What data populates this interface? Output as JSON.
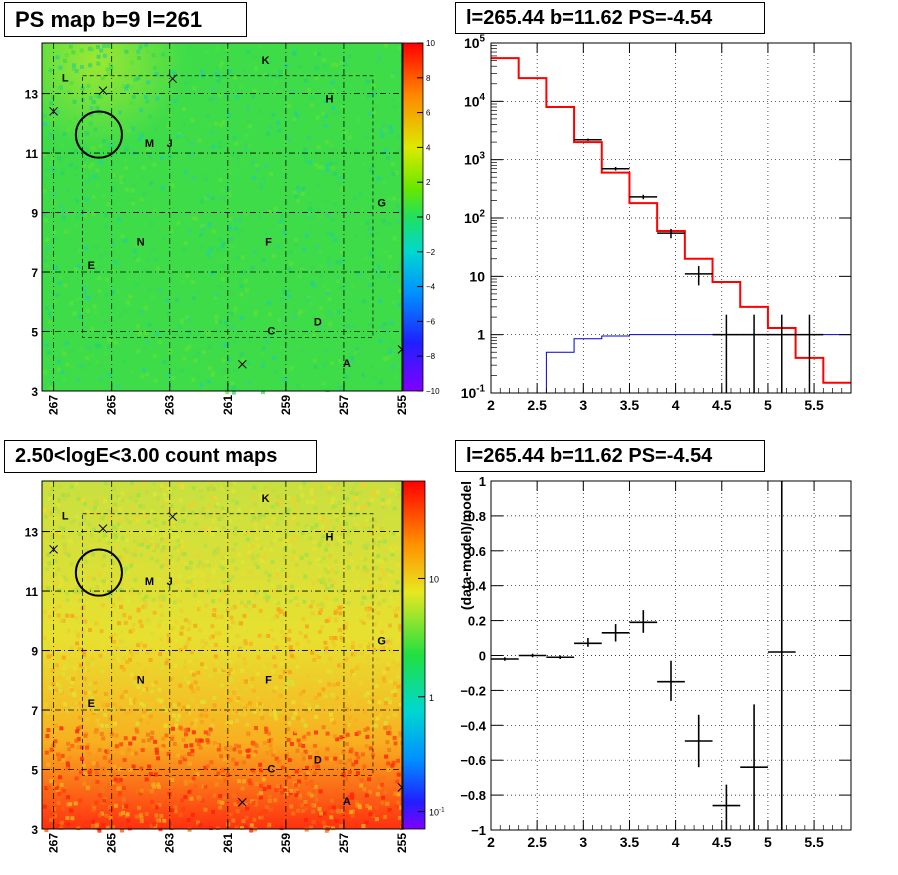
{
  "panels": {
    "top_left_title": "PS map b=9 l=261",
    "top_right_title": "l=265.44 b=11.62 PS=-4.54",
    "bottom_left_title": "2.50<logE<3.00 count maps",
    "bottom_right_title": "l=265.44 b=11.62 PS=-4.54"
  },
  "colors": {
    "frame": "#000000",
    "model_line": "#ff0000",
    "exposure_line": "#0000cc",
    "data": "#000000",
    "map_base_ps": "#3fdc4a",
    "map_base_counts": "#d8e040"
  },
  "chart_data": [
    {
      "type": "heatmap",
      "title": "PS map b=9 l=261",
      "x_ticks": [
        "267",
        "265",
        "263",
        "261",
        "259",
        "257",
        "255"
      ],
      "y_ticks": [
        "3",
        "5",
        "7",
        "9",
        "11",
        "13"
      ],
      "xlim": [
        267.4,
        255
      ],
      "ylim": [
        3,
        14.7
      ],
      "colorbar": {
        "min": -10,
        "max": 10,
        "ticks": [
          "10",
          "8",
          "6",
          "4",
          "2",
          "0",
          "−2",
          "−4",
          "−6",
          "−8",
          "−10"
        ]
      },
      "source_labels": [
        {
          "text": "K",
          "l": 259.7,
          "b": 14.0
        },
        {
          "text": "L",
          "l": 266.6,
          "b": 13.4
        },
        {
          "text": "H",
          "l": 257.5,
          "b": 12.7
        },
        {
          "text": "M",
          "l": 263.7,
          "b": 11.2
        },
        {
          "text": "J",
          "l": 263.0,
          "b": 11.2
        },
        {
          "text": "G",
          "l": 255.7,
          "b": 9.2
        },
        {
          "text": "N",
          "l": 264.0,
          "b": 7.9
        },
        {
          "text": "F",
          "l": 259.6,
          "b": 7.9
        },
        {
          "text": "E",
          "l": 265.7,
          "b": 7.1
        },
        {
          "text": "D",
          "l": 257.9,
          "b": 5.2
        },
        {
          "text": "C",
          "l": 259.5,
          "b": 4.9
        },
        {
          "text": "A",
          "l": 256.9,
          "b": 3.8
        }
      ],
      "crosses": [
        {
          "l": 265.3,
          "b": 13.1
        },
        {
          "l": 262.9,
          "b": 13.5
        },
        {
          "l": 267.0,
          "b": 12.4
        },
        {
          "l": 260.5,
          "b": 3.9
        },
        {
          "l": 255.0,
          "b": 4.4
        }
      ],
      "circle": {
        "l": 265.44,
        "b": 11.62,
        "r": 0.5
      }
    },
    {
      "type": "line",
      "title": "l=265.44 b=11.62 PS=-4.54",
      "x_scale": "linear",
      "y_scale": "log",
      "xlim": [
        2.0,
        5.9
      ],
      "ylim": [
        0.1,
        100000
      ],
      "x_ticks": [
        "2",
        "2.5",
        "3",
        "3.5",
        "4",
        "4.5",
        "5",
        "5.5"
      ],
      "y_ticks": [
        "10^-1",
        "1",
        "10",
        "10^2",
        "10^3",
        "10^4",
        "10^5"
      ],
      "series": [
        {
          "role": "model",
          "style": "step",
          "edges": [
            2.0,
            2.3,
            2.6,
            2.9,
            3.2,
            3.5,
            3.8,
            4.1,
            4.4,
            4.7,
            5.0,
            5.3,
            5.6,
            5.9
          ],
          "values": [
            55000,
            25000,
            8000,
            2000,
            600,
            180,
            60,
            20,
            8,
            3,
            1.3,
            0.4,
            0.15
          ]
        },
        {
          "role": "exposure",
          "style": "step",
          "edges": [
            2.0,
            2.3,
            2.6,
            2.9,
            3.2,
            3.5,
            3.8,
            4.1,
            4.4,
            4.7,
            5.0,
            5.3,
            5.6,
            5.9
          ],
          "values": [
            0.1,
            0.1,
            0.5,
            0.85,
            0.95,
            1.0,
            1.0,
            1.0,
            1.0,
            1.0,
            1.0,
            1.0,
            1.0
          ]
        },
        {
          "role": "data",
          "style": "errorbar",
          "points": [
            {
              "x": 3.05,
              "y": 2200,
              "xerr": 0.15,
              "ylo": 2100,
              "yhi": 2300
            },
            {
              "x": 3.35,
              "y": 700,
              "xerr": 0.15,
              "ylo": 650,
              "yhi": 750
            },
            {
              "x": 3.65,
              "y": 230,
              "xerr": 0.15,
              "ylo": 210,
              "yhi": 250
            },
            {
              "x": 3.95,
              "y": 55,
              "xerr": 0.15,
              "ylo": 45,
              "yhi": 65
            },
            {
              "x": 4.25,
              "y": 11,
              "xerr": 0.15,
              "ylo": 7,
              "yhi": 15
            },
            {
              "x": 4.55,
              "y": 1.0,
              "xerr": 0.15,
              "ylo": 0.1,
              "yhi": 2.2
            },
            {
              "x": 4.85,
              "y": 1.0,
              "xerr": 0.15,
              "ylo": 0.1,
              "yhi": 2.2
            },
            {
              "x": 5.15,
              "y": 1.0,
              "xerr": 0.15,
              "ylo": 0.1,
              "yhi": 2.2
            },
            {
              "x": 5.45,
              "y": 1.0,
              "xerr": 0.15,
              "ylo": 0.1,
              "yhi": 2.2
            }
          ]
        }
      ]
    },
    {
      "type": "heatmap",
      "title": "2.50<logE<3.00 count maps",
      "x_ticks": [
        "267",
        "265",
        "263",
        "261",
        "259",
        "257",
        "255"
      ],
      "y_ticks": [
        "3",
        "5",
        "7",
        "9",
        "11",
        "13"
      ],
      "xlim": [
        267.4,
        255
      ],
      "ylim": [
        3,
        14.7
      ],
      "colorbar": {
        "scale": "log",
        "ticks": [
          "10",
          "1",
          "10^-1"
        ]
      },
      "source_labels": [
        {
          "text": "K",
          "l": 259.7,
          "b": 14.0
        },
        {
          "text": "L",
          "l": 266.6,
          "b": 13.4
        },
        {
          "text": "H",
          "l": 257.5,
          "b": 12.7
        },
        {
          "text": "M",
          "l": 263.7,
          "b": 11.2
        },
        {
          "text": "J",
          "l": 263.0,
          "b": 11.2
        },
        {
          "text": "G",
          "l": 255.7,
          "b": 9.2
        },
        {
          "text": "N",
          "l": 264.0,
          "b": 7.9
        },
        {
          "text": "F",
          "l": 259.6,
          "b": 7.9
        },
        {
          "text": "E",
          "l": 265.7,
          "b": 7.1
        },
        {
          "text": "D",
          "l": 257.9,
          "b": 5.2
        },
        {
          "text": "C",
          "l": 259.5,
          "b": 4.9
        },
        {
          "text": "A",
          "l": 256.9,
          "b": 3.8
        }
      ],
      "crosses": [
        {
          "l": 265.3,
          "b": 13.1
        },
        {
          "l": 262.9,
          "b": 13.5
        },
        {
          "l": 267.0,
          "b": 12.4
        },
        {
          "l": 260.5,
          "b": 3.9
        },
        {
          "l": 255.0,
          "b": 4.4
        }
      ],
      "circle": {
        "l": 265.44,
        "b": 11.62,
        "r": 0.5
      }
    },
    {
      "type": "scatter",
      "title": "l=265.44 b=11.62 PS=-4.54",
      "ylabel": "(data-model)/model",
      "xlim": [
        2.0,
        5.9
      ],
      "ylim": [
        -1,
        1
      ],
      "x_ticks": [
        "2",
        "2.5",
        "3",
        "3.5",
        "4",
        "4.5",
        "5",
        "5.5"
      ],
      "y_ticks": [
        "1",
        "0.8",
        "0.6",
        "0.4",
        "0.2",
        "0",
        "−0.2",
        "−0.4",
        "−0.6",
        "−0.8",
        "−1"
      ],
      "points": [
        {
          "x": 2.15,
          "y": -0.02,
          "xerr": 0.15,
          "ylo": -0.03,
          "yhi": -0.01
        },
        {
          "x": 2.45,
          "y": 0.0,
          "xerr": 0.15,
          "ylo": -0.01,
          "yhi": 0.01
        },
        {
          "x": 2.75,
          "y": -0.01,
          "xerr": 0.15,
          "ylo": -0.02,
          "yhi": 0.0
        },
        {
          "x": 3.05,
          "y": 0.07,
          "xerr": 0.15,
          "ylo": 0.05,
          "yhi": 0.1
        },
        {
          "x": 3.35,
          "y": 0.13,
          "xerr": 0.15,
          "ylo": 0.08,
          "yhi": 0.18
        },
        {
          "x": 3.65,
          "y": 0.19,
          "xerr": 0.15,
          "ylo": 0.13,
          "yhi": 0.26
        },
        {
          "x": 3.95,
          "y": -0.15,
          "xerr": 0.15,
          "ylo": -0.26,
          "yhi": -0.03
        },
        {
          "x": 4.25,
          "y": -0.49,
          "xerr": 0.15,
          "ylo": -0.64,
          "yhi": -0.34
        },
        {
          "x": 4.55,
          "y": -0.86,
          "xerr": 0.15,
          "ylo": -1.0,
          "yhi": -0.74
        },
        {
          "x": 4.85,
          "y": -0.64,
          "xerr": 0.15,
          "ylo": -1.0,
          "yhi": -0.28
        },
        {
          "x": 5.15,
          "y": 0.02,
          "xerr": 0.15,
          "ylo": -1.0,
          "yhi": 1.0
        }
      ]
    }
  ]
}
